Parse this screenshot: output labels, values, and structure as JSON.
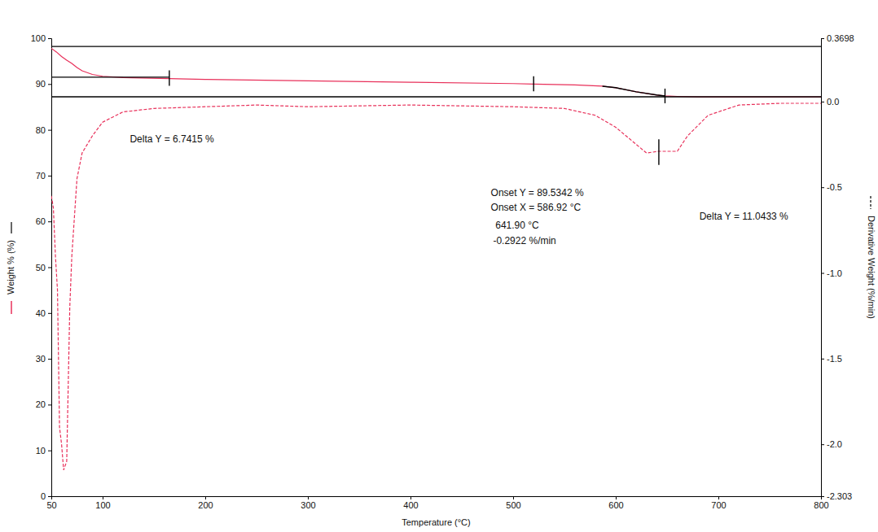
{
  "chart_data": {
    "type": "line",
    "x_label": "Temperature (°C)",
    "y_label": "Weight % (%)",
    "y2_label": "Derivative Weight (%/min)",
    "xlim": [
      50,
      800
    ],
    "xticks": [
      50,
      100,
      200,
      300,
      400,
      500,
      600,
      700,
      800
    ],
    "ylim": [
      0,
      100
    ],
    "yticks": [
      0,
      10,
      20,
      30,
      40,
      50,
      60,
      70,
      80,
      90,
      100
    ],
    "y2lim": [
      -2.303,
      0.3698
    ],
    "y2ticks": [
      -2.303,
      {
        "value": -2,
        "label": "-2.0"
      },
      -1.5,
      {
        "value": -1,
        "label": "-1.0"
      },
      -0.5,
      {
        "value": 0,
        "label": "0.0"
      },
      0.3698
    ],
    "grid": false,
    "annotations": [
      {
        "text": "Delta Y = 6.7415 %"
      },
      {
        "text": "Onset Y = 89.5342 %"
      },
      {
        "text": "Onset X = 586.92 °C"
      },
      {
        "text": "641.90 °C"
      },
      {
        "text": "-0.2922 %/min"
      },
      {
        "text": "Delta Y = 11.0433 %"
      }
    ],
    "series": [
      {
        "color": "#e8305a",
        "line_style": "solid",
        "x": [
          50,
          55,
          60,
          65,
          70,
          75,
          80,
          90,
          100,
          120,
          165,
          200,
          300,
          400,
          500,
          520,
          560,
          587,
          600,
          620,
          640,
          648,
          660,
          680,
          700,
          750,
          800
        ],
        "values": [
          97.8,
          97.0,
          96.0,
          95.2,
          94.5,
          93.6,
          92.9,
          92.1,
          91.7,
          91.4,
          91.2,
          91.0,
          90.7,
          90.4,
          90.1,
          90.0,
          89.8,
          89.53,
          89.2,
          88.3,
          87.6,
          87.4,
          87.3,
          87.2,
          87.2,
          87.2,
          87.2
        ]
      },
      {
        "color": "#e8305a",
        "line_style": "dashed",
        "axis": "y2",
        "x": [
          50,
          52,
          54,
          56,
          58,
          60,
          62,
          65,
          68,
          70,
          75,
          80,
          90,
          100,
          120,
          150,
          200,
          250,
          300,
          400,
          500,
          550,
          580,
          600,
          620,
          630,
          642,
          660,
          670,
          690,
          720,
          760,
          800
        ],
        "values": [
          -0.55,
          -0.62,
          -0.9,
          -1.1,
          -1.9,
          -2.0,
          -2.15,
          -2.1,
          -1.2,
          -0.9,
          -0.45,
          -0.3,
          -0.2,
          -0.12,
          -0.06,
          -0.04,
          -0.03,
          -0.02,
          -0.03,
          -0.02,
          -0.03,
          -0.04,
          -0.08,
          -0.15,
          -0.25,
          -0.3,
          -0.29,
          -0.29,
          -0.2,
          -0.08,
          -0.02,
          -0.01,
          -0.01
        ]
      },
      {
        "color": "#000000",
        "line_style": "solid",
        "x": [
          50,
          800
        ],
        "values": [
          98.2,
          98.2
        ]
      },
      {
        "color": "#000000",
        "line_style": "solid",
        "x": [
          50,
          165
        ],
        "values": [
          91.5,
          91.5
        ]
      },
      {
        "color": "#000000",
        "line_style": "solid",
        "x": [
          50,
          800
        ],
        "values": [
          87.2,
          87.2
        ]
      },
      {
        "color": "#000000",
        "line_style": "solid",
        "x": [
          587,
          600,
          620,
          640,
          648
        ],
        "values": [
          89.53,
          89.2,
          88.3,
          87.6,
          87.4
        ]
      },
      {
        "color": "#000000",
        "line_style": "solid",
        "x": [
          165,
          165
        ],
        "values": [
          89.6,
          93.0
        ]
      },
      {
        "color": "#000000",
        "line_style": "solid",
        "x": [
          520,
          520
        ],
        "values": [
          88.4,
          91.7
        ]
      },
      {
        "color": "#000000",
        "line_style": "solid",
        "x": [
          648,
          648
        ],
        "values": [
          85.8,
          89.0
        ]
      },
      {
        "color": "#000000",
        "line_style": "solid",
        "axis": "y2",
        "x": [
          642,
          642
        ],
        "values": [
          -0.22,
          -0.37
        ]
      }
    ]
  }
}
